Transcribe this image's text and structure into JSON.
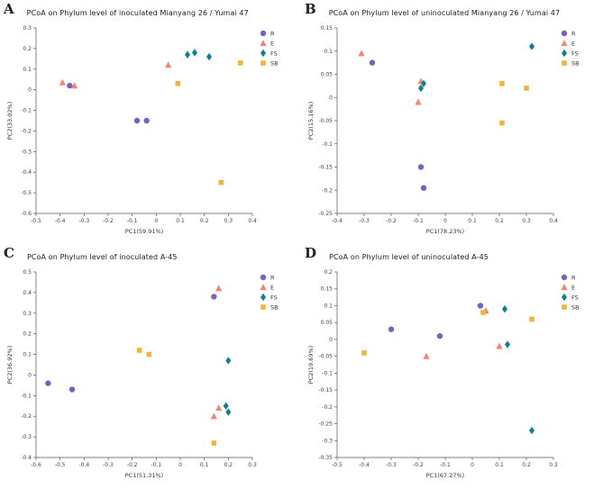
{
  "legend": {
    "items": [
      "R",
      "E",
      "FS",
      "SB"
    ],
    "position": "right"
  },
  "colors": {
    "R": "#7a5fc0",
    "E": "#f08576",
    "FS": "#0e7f8e",
    "SB": "#f0b53a"
  },
  "chart_data": [
    {
      "type": "scatter",
      "panel": "A",
      "title": "PCoA on Phylum level of inoculated Mianyang 26 / Yumai 47",
      "xlabel": "PC1(59.91%)",
      "ylabel": "PC2(33.02%)",
      "xlim": [
        -0.5,
        0.4
      ],
      "ylim": [
        -0.6,
        0.3
      ],
      "xticks": [
        -0.5,
        -0.4,
        -0.3,
        -0.2,
        -0.1,
        0,
        0.1,
        0.2,
        0.3,
        0.4
      ],
      "yticks": [
        0.3,
        0.2,
        0.1,
        0,
        -0.1,
        -0.2,
        -0.3,
        -0.4,
        -0.5,
        -0.6
      ],
      "grid": false,
      "legend_position": "right",
      "series": [
        {
          "name": "R",
          "marker": "circle",
          "color": "#7a5fc0",
          "points": [
            [
              -0.36,
              0.02
            ],
            [
              -0.08,
              -0.15
            ],
            [
              -0.04,
              -0.15
            ]
          ]
        },
        {
          "name": "E",
          "marker": "triangle",
          "color": "#f08576",
          "points": [
            [
              -0.39,
              0.035
            ],
            [
              -0.34,
              0.02
            ],
            [
              0.05,
              0.12
            ]
          ]
        },
        {
          "name": "FS",
          "marker": "diamond",
          "color": "#0e7f8e",
          "points": [
            [
              0.13,
              0.17
            ],
            [
              0.16,
              0.18
            ],
            [
              0.22,
              0.16
            ]
          ]
        },
        {
          "name": "SB",
          "marker": "square",
          "color": "#f0b53a",
          "points": [
            [
              0.09,
              0.03
            ],
            [
              0.27,
              -0.45
            ],
            [
              0.35,
              0.13
            ]
          ]
        }
      ]
    },
    {
      "type": "scatter",
      "panel": "B",
      "title": "PCoA on Phylum level of uninoculated Mianyang 26 / Yumai 47",
      "xlabel": "PC1(78.23%)",
      "ylabel": "PC2(15.16%)",
      "xlim": [
        -0.4,
        0.4
      ],
      "ylim": [
        -0.25,
        0.15
      ],
      "xticks": [
        -0.4,
        -0.3,
        -0.2,
        -0.1,
        0,
        0.1,
        0.2,
        0.3,
        0.4
      ],
      "yticks": [
        0.15,
        0.1,
        0.05,
        0,
        -0.05,
        -0.1,
        -0.15,
        -0.2,
        -0.25
      ],
      "grid": false,
      "legend_position": "right",
      "series": [
        {
          "name": "R",
          "marker": "circle",
          "color": "#7a5fc0",
          "points": [
            [
              -0.27,
              0.075
            ],
            [
              -0.09,
              -0.15
            ],
            [
              -0.08,
              -0.195
            ]
          ]
        },
        {
          "name": "E",
          "marker": "triangle",
          "color": "#f08576",
          "points": [
            [
              -0.31,
              0.095
            ],
            [
              -0.1,
              -0.01
            ],
            [
              -0.09,
              0.035
            ]
          ]
        },
        {
          "name": "FS",
          "marker": "diamond",
          "color": "#0e7f8e",
          "points": [
            [
              -0.08,
              0.03
            ],
            [
              -0.09,
              0.02
            ],
            [
              0.32,
              0.11
            ]
          ]
        },
        {
          "name": "SB",
          "marker": "square",
          "color": "#f0b53a",
          "points": [
            [
              0.21,
              0.03
            ],
            [
              0.21,
              -0.055
            ],
            [
              0.3,
              0.02
            ]
          ]
        }
      ]
    },
    {
      "type": "scatter",
      "panel": "C",
      "title": "PCoA on Phylum level of inoculated A-45",
      "xlabel": "PC1(51.31%)",
      "ylabel": "PC2(36.92%)",
      "xlim": [
        -0.6,
        0.3
      ],
      "ylim": [
        -0.4,
        0.5
      ],
      "xticks": [
        -0.6,
        -0.5,
        -0.4,
        -0.3,
        -0.2,
        -0.1,
        0,
        0.1,
        0.2,
        0.3
      ],
      "yticks": [
        0.5,
        0.4,
        0.3,
        0.2,
        0.1,
        0,
        -0.1,
        -0.2,
        -0.3,
        -0.4
      ],
      "grid": false,
      "legend_position": "right",
      "series": [
        {
          "name": "R",
          "marker": "circle",
          "color": "#7a5fc0",
          "points": [
            [
              -0.55,
              -0.04
            ],
            [
              -0.45,
              -0.07
            ],
            [
              0.14,
              0.38
            ]
          ]
        },
        {
          "name": "E",
          "marker": "triangle",
          "color": "#f08576",
          "points": [
            [
              0.16,
              0.42
            ],
            [
              0.14,
              -0.2
            ],
            [
              0.16,
              -0.16
            ]
          ]
        },
        {
          "name": "FS",
          "marker": "diamond",
          "color": "#0e7f8e",
          "points": [
            [
              0.2,
              0.07
            ],
            [
              0.19,
              -0.15
            ],
            [
              0.2,
              -0.18
            ]
          ]
        },
        {
          "name": "SB",
          "marker": "square",
          "color": "#f0b53a",
          "points": [
            [
              -0.17,
              0.12
            ],
            [
              -0.13,
              0.1
            ],
            [
              0.14,
              -0.33
            ]
          ]
        }
      ]
    },
    {
      "type": "scatter",
      "panel": "D",
      "title": "PCoA on Phylum level of uninoculated A-45",
      "xlabel": "PC1(67.27%)",
      "ylabel": "PC2(19.69%)",
      "xlim": [
        -0.5,
        0.3
      ],
      "ylim": [
        -0.35,
        0.2
      ],
      "xticks": [
        -0.5,
        -0.4,
        -0.3,
        -0.2,
        -0.1,
        0,
        0.1,
        0.2,
        0.3
      ],
      "yticks": [
        0.2,
        0.15,
        0.1,
        0.05,
        0,
        -0.05,
        -0.1,
        -0.15,
        -0.2,
        -0.25,
        -0.3,
        -0.35
      ],
      "grid": false,
      "legend_position": "right",
      "series": [
        {
          "name": "R",
          "marker": "circle",
          "color": "#7a5fc0",
          "points": [
            [
              -0.3,
              0.03
            ],
            [
              -0.12,
              0.01
            ],
            [
              0.03,
              0.1
            ]
          ]
        },
        {
          "name": "E",
          "marker": "triangle",
          "color": "#f08576",
          "points": [
            [
              -0.17,
              -0.05
            ],
            [
              0.05,
              0.085
            ],
            [
              0.1,
              -0.02
            ]
          ]
        },
        {
          "name": "FS",
          "marker": "diamond",
          "color": "#0e7f8e",
          "points": [
            [
              0.12,
              0.09
            ],
            [
              0.13,
              -0.015
            ],
            [
              0.22,
              -0.27
            ]
          ]
        },
        {
          "name": "SB",
          "marker": "square",
          "color": "#f0b53a",
          "points": [
            [
              -0.4,
              -0.04
            ],
            [
              0.04,
              0.08
            ],
            [
              0.22,
              0.06
            ]
          ]
        }
      ]
    }
  ]
}
